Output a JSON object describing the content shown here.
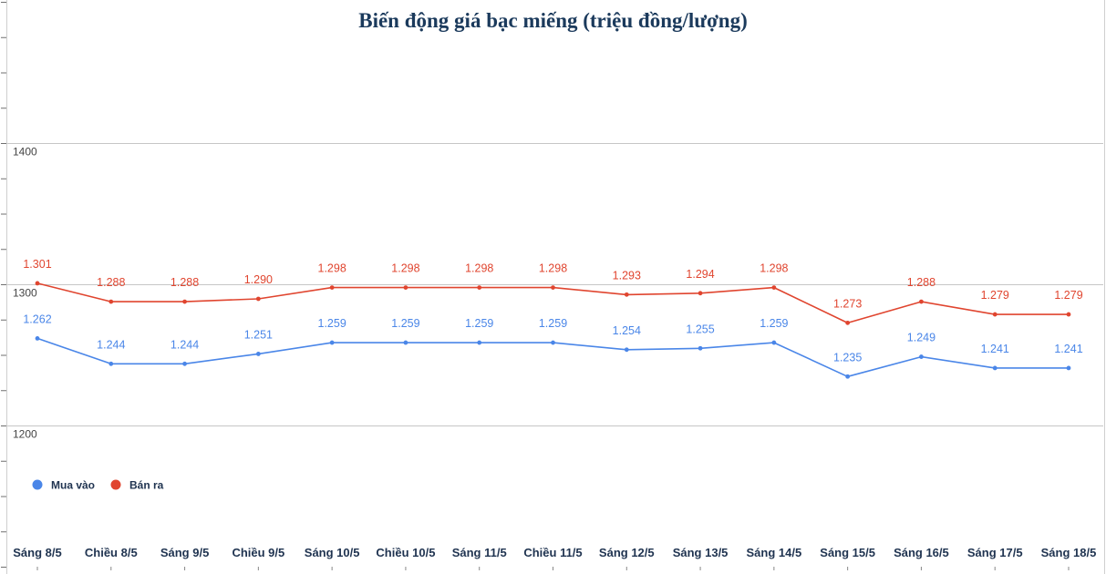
{
  "chart_data": {
    "type": "line",
    "title": "Biến động giá bạc miếng (triệu đồng/lượng)",
    "categories": [
      "Sáng 8/5",
      "Chiều 8/5",
      "Sáng 9/5",
      "Chiều 9/5",
      "Sáng 10/5",
      "Chiều 10/5",
      "Sáng 11/5",
      "Chiều 11/5",
      "Sáng 12/5",
      "Sáng 13/5",
      "Sáng 14/5",
      "Sáng 15/5",
      "Sáng 16/5",
      "Sáng 17/5",
      "Sáng 18/5"
    ],
    "series": [
      {
        "name": "Mua vào",
        "color": "#4a86e8",
        "values": [
          1262,
          1244,
          1244,
          1251,
          1259,
          1259,
          1259,
          1259,
          1254,
          1255,
          1259,
          1235,
          1249,
          1241,
          1241
        ],
        "labels": [
          "1.262",
          "1.244",
          "1.244",
          "1.251",
          "1.259",
          "1.259",
          "1.259",
          "1.259",
          "1.254",
          "1.255",
          "1.259",
          "1.235",
          "1.249",
          "1.241",
          "1.241"
        ]
      },
      {
        "name": "Bán ra",
        "color": "#e0452f",
        "values": [
          1301,
          1288,
          1288,
          1290,
          1298,
          1298,
          1298,
          1298,
          1293,
          1294,
          1298,
          1273,
          1288,
          1279,
          1279
        ],
        "labels": [
          "1.301",
          "1.288",
          "1.288",
          "1.290",
          "1.298",
          "1.298",
          "1.298",
          "1.298",
          "1.293",
          "1.294",
          "1.298",
          "1.273",
          "1.288",
          "1.279",
          "1.279"
        ]
      }
    ],
    "yticks": [
      1200,
      1300,
      1400
    ],
    "ylim": [
      1100,
      1500
    ],
    "grid": true,
    "legend": "bottom-left"
  }
}
